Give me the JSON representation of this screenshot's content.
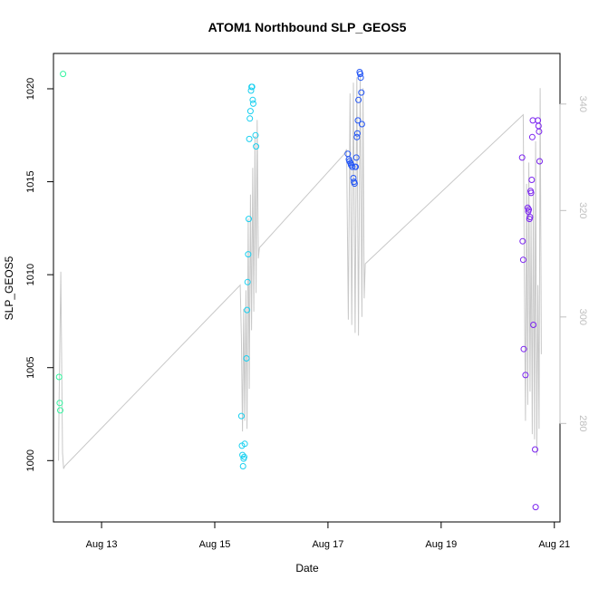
{
  "chart_data": {
    "type": "scatter",
    "title": "ATOM1 Northbound SLP_GEOS5",
    "xlabel": "Date",
    "ylabel": "SLP_GEOS5",
    "xlim": [
      12.15,
      21.1
    ],
    "ylim": [
      996.7,
      1021.9
    ],
    "y_right_lim": [
      261.5,
      349.5
    ],
    "x_ticks": [
      {
        "value": 13,
        "label": "Aug 13"
      },
      {
        "value": 15,
        "label": "Aug 15"
      },
      {
        "value": 17,
        "label": "Aug 17"
      },
      {
        "value": 19,
        "label": "Aug 19"
      },
      {
        "value": 21,
        "label": "Aug 21"
      }
    ],
    "y_ticks": [
      1000,
      1005,
      1010,
      1015,
      1020
    ],
    "y_right_ticks": [
      280,
      300,
      320,
      340
    ],
    "points": [
      {
        "x": 12.25,
        "y": 1004.5,
        "c": "#33f5a0"
      },
      {
        "x": 12.26,
        "y": 1003.1,
        "c": "#33f5a0"
      },
      {
        "x": 12.27,
        "y": 1002.7,
        "c": "#33f5a0"
      },
      {
        "x": 12.32,
        "y": 1020.8,
        "c": "#33f5a0"
      },
      {
        "x": 15.47,
        "y": 1002.4,
        "c": "#1ad0f0"
      },
      {
        "x": 15.48,
        "y": 1000.8,
        "c": "#1ad0f0"
      },
      {
        "x": 15.49,
        "y": 1000.3,
        "c": "#1ad0f0"
      },
      {
        "x": 15.5,
        "y": 999.7,
        "c": "#1ad0f0"
      },
      {
        "x": 15.51,
        "y": 1000.1,
        "c": "#1ad0f0"
      },
      {
        "x": 15.52,
        "y": 1000.2,
        "c": "#1ad0f0"
      },
      {
        "x": 15.53,
        "y": 1000.9,
        "c": "#1ad0f0"
      },
      {
        "x": 15.56,
        "y": 1005.5,
        "c": "#1ad0f0"
      },
      {
        "x": 15.57,
        "y": 1008.1,
        "c": "#1ad0f0"
      },
      {
        "x": 15.58,
        "y": 1009.6,
        "c": "#1ad0f0"
      },
      {
        "x": 15.59,
        "y": 1011.1,
        "c": "#1ad0f0"
      },
      {
        "x": 15.6,
        "y": 1013.0,
        "c": "#1ad0f0"
      },
      {
        "x": 15.61,
        "y": 1017.3,
        "c": "#1ad0f0"
      },
      {
        "x": 15.62,
        "y": 1018.4,
        "c": "#1ad0f0"
      },
      {
        "x": 15.63,
        "y": 1018.8,
        "c": "#1ad0f0"
      },
      {
        "x": 15.64,
        "y": 1019.9,
        "c": "#1ad0f0"
      },
      {
        "x": 15.65,
        "y": 1020.1,
        "c": "#1ad0f0"
      },
      {
        "x": 15.66,
        "y": 1020.1,
        "c": "#1ad0f0"
      },
      {
        "x": 15.67,
        "y": 1019.4,
        "c": "#1ad0f0"
      },
      {
        "x": 15.68,
        "y": 1019.2,
        "c": "#1ad0f0"
      },
      {
        "x": 15.72,
        "y": 1017.5,
        "c": "#1ad0f0"
      },
      {
        "x": 15.73,
        "y": 1016.9,
        "c": "#1ad0f0"
      },
      {
        "x": 17.35,
        "y": 1016.5,
        "c": "#2255f5"
      },
      {
        "x": 17.37,
        "y": 1016.2,
        "c": "#2255f5"
      },
      {
        "x": 17.38,
        "y": 1016.1,
        "c": "#2255f5"
      },
      {
        "x": 17.4,
        "y": 1016.0,
        "c": "#2255f5"
      },
      {
        "x": 17.41,
        "y": 1015.9,
        "c": "#2255f5"
      },
      {
        "x": 17.43,
        "y": 1015.8,
        "c": "#2255f5"
      },
      {
        "x": 17.45,
        "y": 1015.2,
        "c": "#2255f5"
      },
      {
        "x": 17.46,
        "y": 1015.0,
        "c": "#2255f5"
      },
      {
        "x": 17.47,
        "y": 1014.9,
        "c": "#2255f5"
      },
      {
        "x": 17.48,
        "y": 1015.8,
        "c": "#2255f5"
      },
      {
        "x": 17.49,
        "y": 1015.8,
        "c": "#2255f5"
      },
      {
        "x": 17.5,
        "y": 1016.3,
        "c": "#2255f5"
      },
      {
        "x": 17.51,
        "y": 1017.4,
        "c": "#2255f5"
      },
      {
        "x": 17.52,
        "y": 1017.6,
        "c": "#2255f5"
      },
      {
        "x": 17.53,
        "y": 1018.3,
        "c": "#2255f5"
      },
      {
        "x": 17.54,
        "y": 1019.4,
        "c": "#2255f5"
      },
      {
        "x": 17.56,
        "y": 1020.9,
        "c": "#2255f5"
      },
      {
        "x": 17.57,
        "y": 1020.8,
        "c": "#2255f5"
      },
      {
        "x": 17.58,
        "y": 1020.6,
        "c": "#2255f5"
      },
      {
        "x": 17.59,
        "y": 1019.8,
        "c": "#2255f5"
      },
      {
        "x": 17.6,
        "y": 1018.1,
        "c": "#2255f5"
      },
      {
        "x": 20.43,
        "y": 1016.3,
        "c": "#7a22f0"
      },
      {
        "x": 20.44,
        "y": 1011.8,
        "c": "#7a22f0"
      },
      {
        "x": 20.45,
        "y": 1010.8,
        "c": "#7a22f0"
      },
      {
        "x": 20.46,
        "y": 1006.0,
        "c": "#7a22f0"
      },
      {
        "x": 20.49,
        "y": 1004.6,
        "c": "#7a22f0"
      },
      {
        "x": 20.53,
        "y": 1013.6,
        "c": "#7a22f0"
      },
      {
        "x": 20.54,
        "y": 1013.4,
        "c": "#7a22f0"
      },
      {
        "x": 20.55,
        "y": 1013.5,
        "c": "#7a22f0"
      },
      {
        "x": 20.56,
        "y": 1013.0,
        "c": "#7a22f0"
      },
      {
        "x": 20.57,
        "y": 1013.1,
        "c": "#7a22f0"
      },
      {
        "x": 20.58,
        "y": 1014.5,
        "c": "#7a22f0"
      },
      {
        "x": 20.59,
        "y": 1014.4,
        "c": "#7a22f0"
      },
      {
        "x": 20.6,
        "y": 1015.1,
        "c": "#7a22f0"
      },
      {
        "x": 20.61,
        "y": 1017.4,
        "c": "#7a22f0"
      },
      {
        "x": 20.62,
        "y": 1018.3,
        "c": "#7a22f0"
      },
      {
        "x": 20.63,
        "y": 1007.3,
        "c": "#7a22f0"
      },
      {
        "x": 20.66,
        "y": 1000.6,
        "c": "#7a22f0"
      },
      {
        "x": 20.67,
        "y": 997.5,
        "c": "#7a22f0"
      },
      {
        "x": 20.71,
        "y": 1018.3,
        "c": "#7a22f0"
      },
      {
        "x": 20.72,
        "y": 1018.0,
        "c": "#7a22f0"
      },
      {
        "x": 20.73,
        "y": 1017.7,
        "c": "#7a22f0"
      },
      {
        "x": 20.74,
        "y": 1016.1,
        "c": "#7a22f0"
      }
    ],
    "line_series": {
      "name": "right-axis trace",
      "axis": "right",
      "color": "#c8c8c8",
      "x": [
        12.24,
        12.25,
        12.28,
        12.31,
        12.33,
        12.35,
        15.45,
        15.47,
        15.49,
        15.51,
        15.53,
        15.55,
        15.57,
        15.59,
        15.61,
        15.63,
        15.65,
        15.67,
        15.69,
        15.71,
        15.73,
        15.75,
        15.77,
        15.79,
        17.28,
        17.33,
        17.36,
        17.39,
        17.42,
        17.45,
        17.48,
        17.51,
        17.54,
        17.57,
        17.6,
        17.62,
        17.64,
        17.66,
        20.45,
        20.47,
        20.49,
        20.51,
        20.53,
        20.55,
        20.57,
        20.59,
        20.61,
        20.63,
        20.65,
        20.67,
        20.69,
        20.71,
        20.73,
        20.75,
        20.77
      ],
      "y": [
        273.0,
        284.0,
        308.5,
        274.5,
        271.5,
        272.0,
        306.0,
        296.0,
        278.5,
        301.5,
        280.5,
        305.0,
        279.0,
        318.5,
        286.5,
        323.0,
        297.5,
        328.0,
        301.0,
        334.0,
        304.5,
        337.0,
        311.0,
        313.0,
        330.5,
        331.5,
        299.5,
        342.0,
        298.5,
        344.0,
        297.0,
        345.0,
        296.5,
        345.5,
        300.0,
        343.0,
        303.5,
        310.0,
        338.0,
        307.0,
        280.5,
        325.0,
        283.5,
        329.0,
        286.0,
        318.0,
        278.0,
        324.0,
        277.0,
        333.0,
        274.0,
        306.0,
        279.0,
        343.0,
        293.0
      ]
    }
  }
}
